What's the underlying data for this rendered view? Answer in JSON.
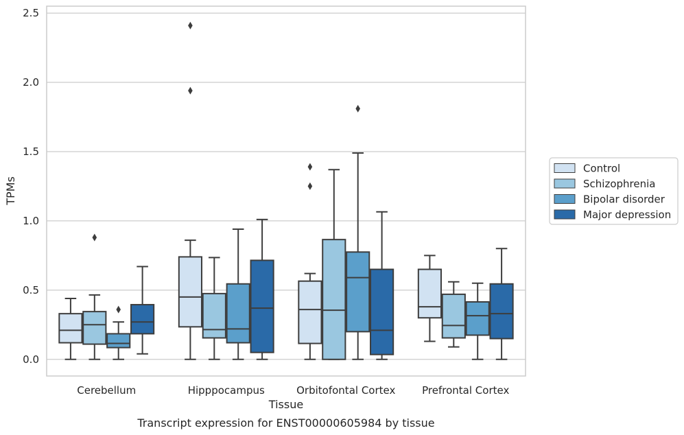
{
  "caption": "Transcript expression for ENST00000605984 by tissue",
  "colors": {
    "box_edge": "#3d3d3d",
    "grid": "#cccccc",
    "axes_edge": "#cccccc",
    "background": "#ffffff"
  },
  "chart_data": {
    "type": "box",
    "xlabel": "Tissue",
    "ylabel": "TPMs",
    "ylim": [
      -0.12,
      2.55
    ],
    "yticks": [
      "0.0",
      "0.5",
      "1.0",
      "1.5",
      "2.0",
      "2.5"
    ],
    "grid": "horizontal",
    "legend_position": "right",
    "categories": [
      "Cerebellum",
      "Hipppocampus",
      "Orbitofontal Cortex",
      "Prefrontal Cortex"
    ],
    "series": [
      {
        "name": "Control",
        "color": "#d1e2f2",
        "boxes": [
          {
            "whislo": 0.0,
            "q1": 0.12,
            "med": 0.21,
            "q3": 0.33,
            "whishi": 0.44,
            "fliers": []
          },
          {
            "whislo": 0.0,
            "q1": 0.235,
            "med": 0.45,
            "q3": 0.74,
            "whishi": 0.86,
            "fliers": [
              1.94,
              2.41
            ]
          },
          {
            "whislo": 0.0,
            "q1": 0.115,
            "med": 0.36,
            "q3": 0.565,
            "whishi": 0.62,
            "fliers": [
              1.25,
              1.39
            ]
          },
          {
            "whislo": 0.13,
            "q1": 0.3,
            "med": 0.38,
            "q3": 0.65,
            "whishi": 0.75,
            "fliers": []
          }
        ]
      },
      {
        "name": "Schizophrenia",
        "color": "#9ac7e0",
        "boxes": [
          {
            "whislo": 0.0,
            "q1": 0.11,
            "med": 0.25,
            "q3": 0.345,
            "whishi": 0.465,
            "fliers": [
              0.88
            ]
          },
          {
            "whislo": 0.0,
            "q1": 0.155,
            "med": 0.215,
            "q3": 0.475,
            "whishi": 0.735,
            "fliers": []
          },
          {
            "whislo": 0.0,
            "q1": 0.0,
            "med": 0.355,
            "q3": 0.865,
            "whishi": 1.37,
            "fliers": []
          },
          {
            "whislo": 0.09,
            "q1": 0.155,
            "med": 0.245,
            "q3": 0.47,
            "whishi": 0.56,
            "fliers": []
          }
        ]
      },
      {
        "name": "Bipolar disorder",
        "color": "#5b9fcb",
        "boxes": [
          {
            "whislo": 0.0,
            "q1": 0.085,
            "med": 0.115,
            "q3": 0.185,
            "whishi": 0.27,
            "fliers": [
              0.36
            ]
          },
          {
            "whislo": 0.0,
            "q1": 0.12,
            "med": 0.22,
            "q3": 0.545,
            "whishi": 0.94,
            "fliers": []
          },
          {
            "whislo": 0.0,
            "q1": 0.2,
            "med": 0.59,
            "q3": 0.775,
            "whishi": 1.49,
            "fliers": [
              1.81
            ]
          },
          {
            "whislo": 0.0,
            "q1": 0.175,
            "med": 0.315,
            "q3": 0.415,
            "whishi": 0.55,
            "fliers": []
          }
        ]
      },
      {
        "name": "Major depression",
        "color": "#2a6aa8",
        "boxes": [
          {
            "whislo": 0.04,
            "q1": 0.185,
            "med": 0.27,
            "q3": 0.395,
            "whishi": 0.67,
            "fliers": []
          },
          {
            "whislo": 0.0,
            "q1": 0.05,
            "med": 0.37,
            "q3": 0.715,
            "whishi": 1.01,
            "fliers": []
          },
          {
            "whislo": 0.0,
            "q1": 0.035,
            "med": 0.21,
            "q3": 0.65,
            "whishi": 1.065,
            "fliers": []
          },
          {
            "whislo": 0.0,
            "q1": 0.15,
            "med": 0.33,
            "q3": 0.545,
            "whishi": 0.8,
            "fliers": []
          }
        ]
      }
    ]
  }
}
